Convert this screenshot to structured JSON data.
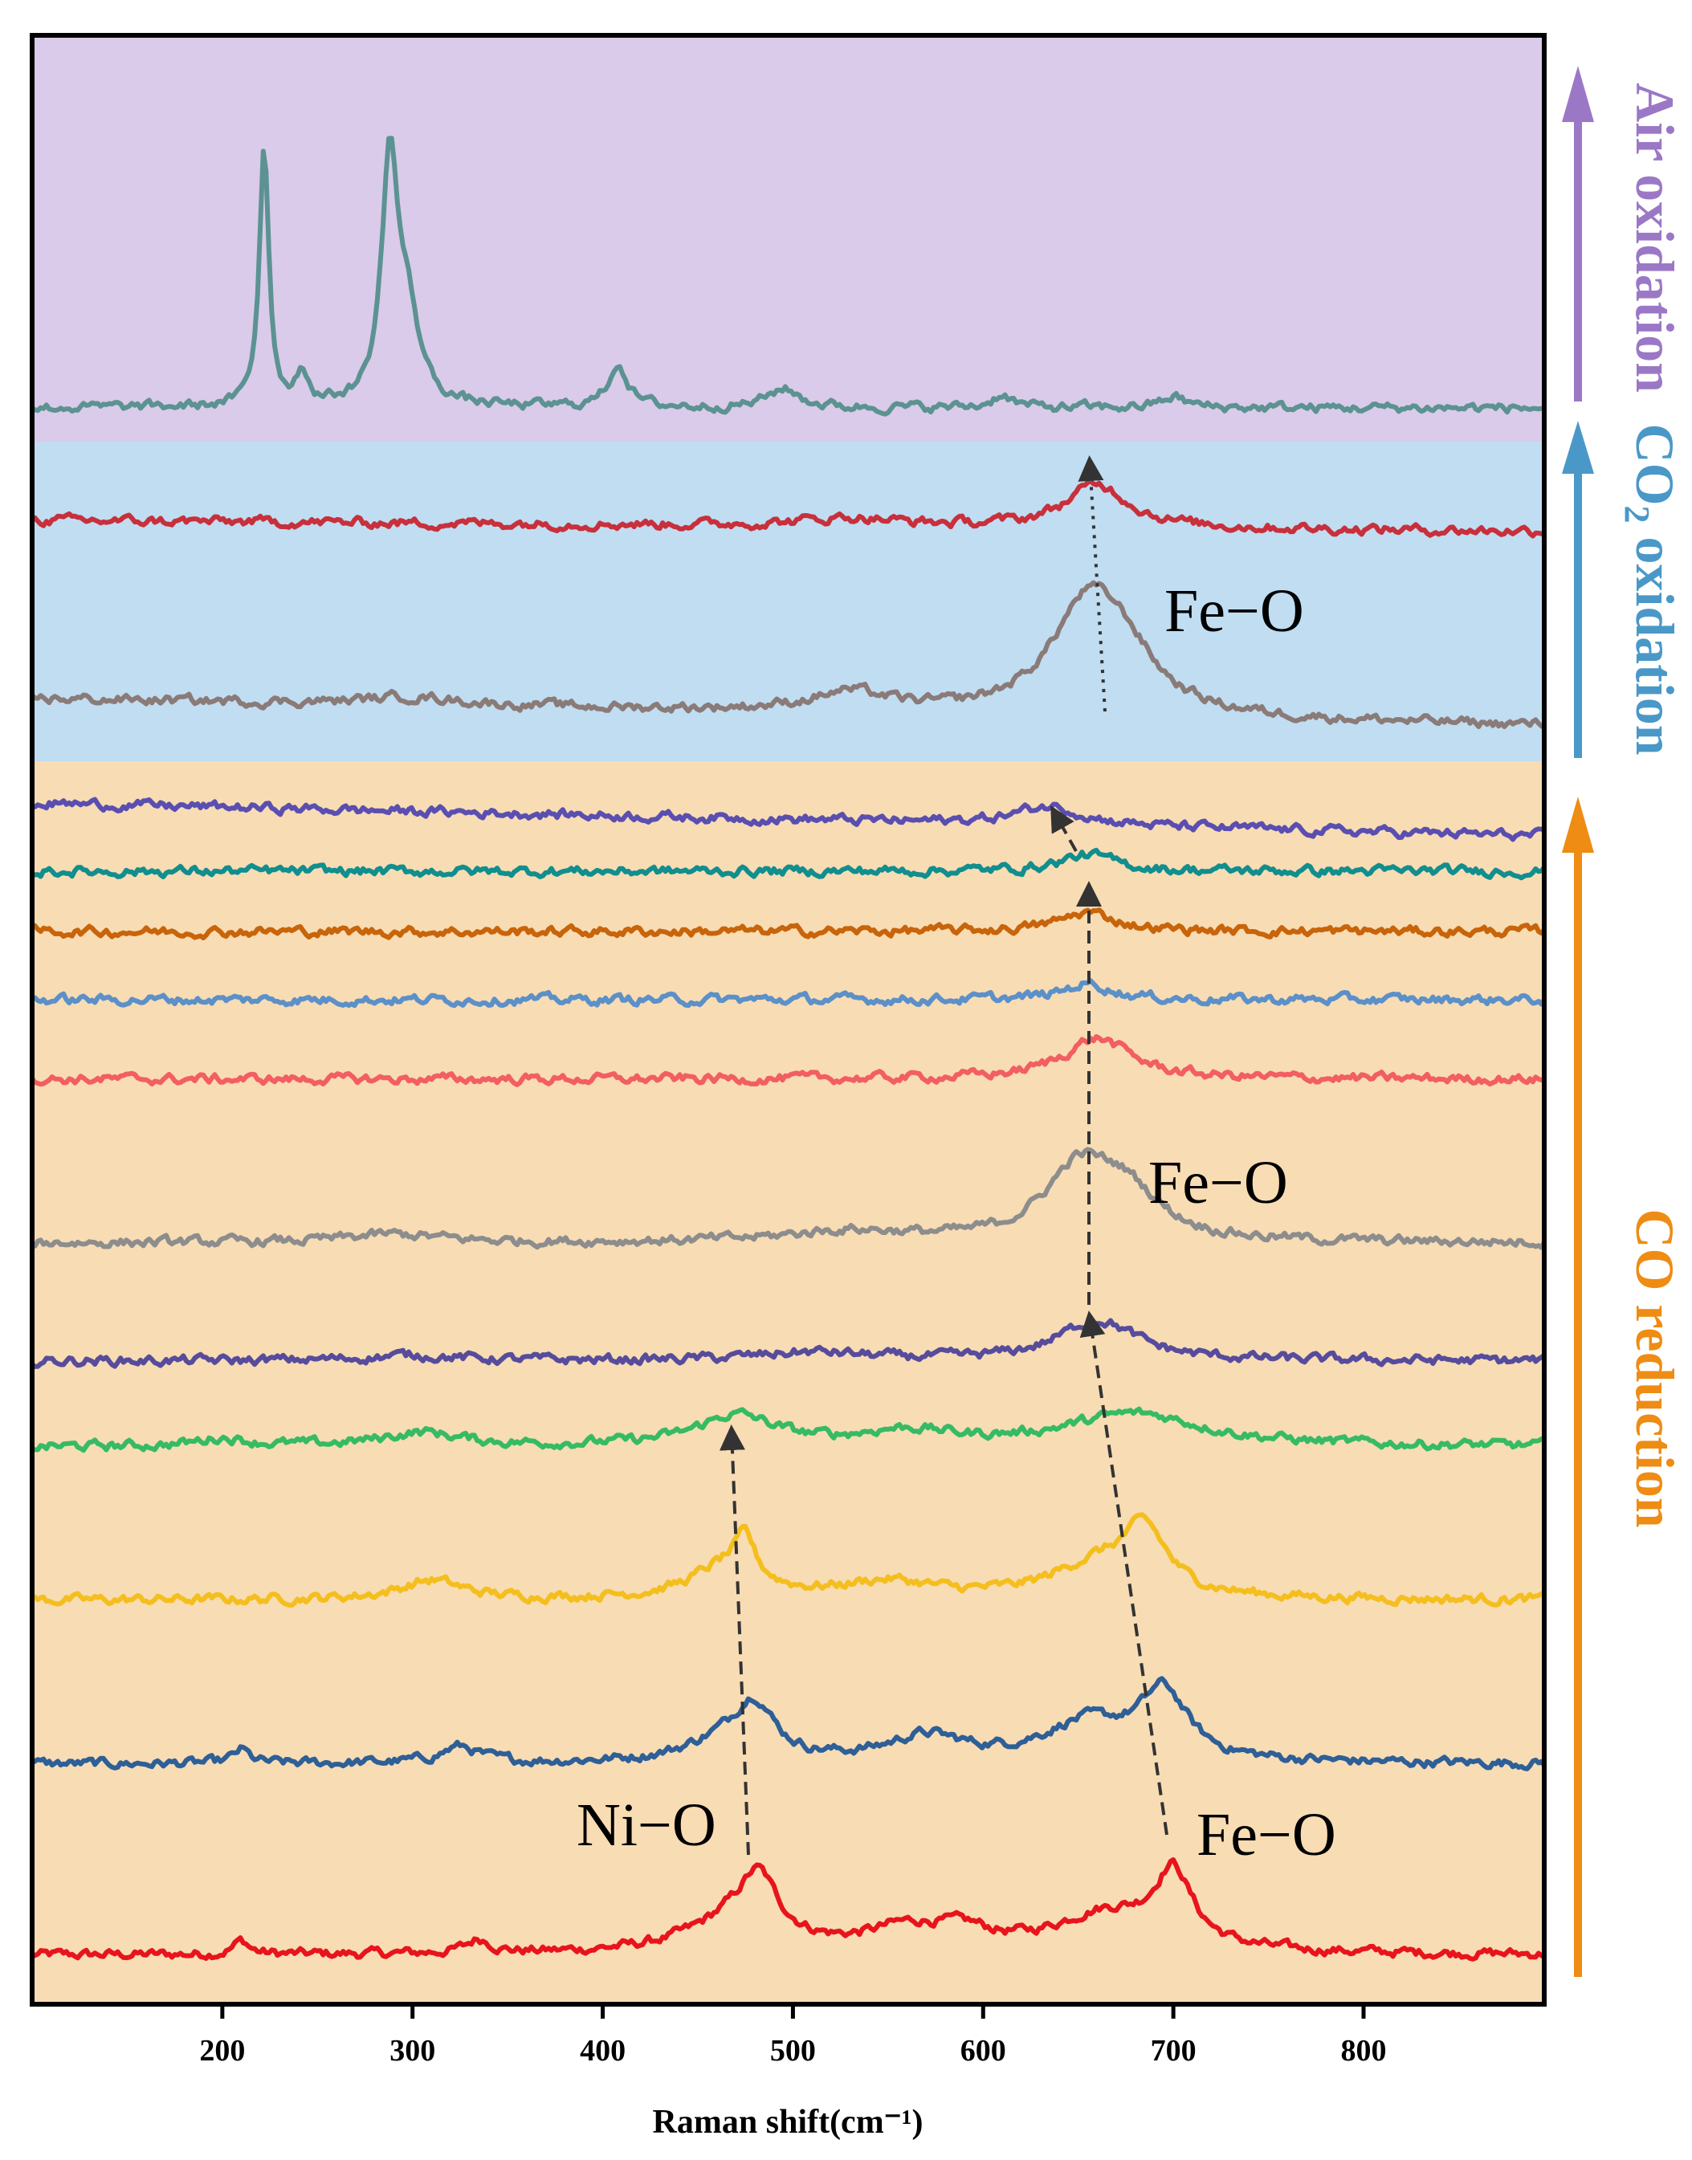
{
  "chart_data": {
    "type": "line",
    "title": "",
    "xlabel": "Raman shift(cm⁻¹)",
    "ylabel": "",
    "xlim": [
      100,
      895
    ],
    "xticks": [
      200,
      300,
      400,
      500,
      600,
      700,
      800
    ],
    "tick_labels": [
      "200",
      "300",
      "400",
      "500",
      "600",
      "700",
      "800"
    ],
    "y_axis": "stacked intensity (a.u.), no ticks",
    "regions": [
      {
        "name": "CO reduction",
        "color": "#f8dcb4",
        "label_color": "#ee8c14"
      },
      {
        "name": "CO2 oxidation",
        "color": "#c0ddf2",
        "label_color": "#4a98c8"
      },
      {
        "name": "Air oxidation",
        "color": "#d9cbe9",
        "label_color": "#9b78c6"
      }
    ],
    "side_labels": {
      "co_reduction": "CO reduction",
      "co2_oxidation_prefix": "CO",
      "co2_oxidation_sub": "2",
      "co2_oxidation_suffix": " oxidation",
      "air_oxidation": "Air oxidation"
    },
    "annotations": {
      "ni_o": "Ni−O",
      "fe_o_bottom": "Fe−O",
      "fe_o_middle": "Fe−O",
      "fe_o_co2": "Fe−O"
    },
    "series": [
      {
        "name": "CO reduction 1",
        "region": "CO reduction",
        "color": "#e8141c",
        "baseline": 0.56,
        "slope": 0,
        "peaks": [
          [
            210,
            0.25,
            5
          ],
          [
            335,
            0.25,
            8
          ],
          [
            470,
            0.6,
            30
          ],
          [
            482,
            1.0,
            12
          ],
          [
            560,
            0.4,
            25
          ],
          [
            590,
            0.3,
            18
          ],
          [
            665,
            0.7,
            35
          ],
          [
            700,
            1.3,
            12
          ]
        ]
      },
      {
        "name": "CO reduction 2",
        "region": "CO reduction",
        "color": "#2e5f97",
        "baseline": 0.56,
        "slope": 0,
        "peaks": [
          [
            210,
            0.25,
            5
          ],
          [
            325,
            0.3,
            12
          ],
          [
            465,
            0.4,
            25
          ],
          [
            480,
            0.9,
            12
          ],
          [
            570,
            0.45,
            25
          ],
          [
            655,
            0.7,
            30
          ],
          [
            695,
            1.2,
            15
          ]
        ]
      },
      {
        "name": "CO reduction 3",
        "region": "CO reduction",
        "color": "#f4bf1e",
        "baseline": 0.56,
        "slope": 0,
        "peaks": [
          [
            310,
            0.35,
            20
          ],
          [
            465,
            0.6,
            22
          ],
          [
            475,
            0.7,
            6
          ],
          [
            550,
            0.3,
            30
          ],
          [
            660,
            0.6,
            30
          ],
          [
            685,
            1.1,
            14
          ]
        ]
      },
      {
        "name": "CO reduction 4",
        "region": "CO reduction",
        "color": "#36bb64",
        "baseline": 0.56,
        "slope": 0,
        "peaks": [
          [
            200,
            0.15,
            15
          ],
          [
            305,
            0.25,
            25
          ],
          [
            470,
            0.55,
            25
          ],
          [
            560,
            0.25,
            30
          ],
          [
            680,
            0.6,
            45
          ]
        ]
      },
      {
        "name": "CO reduction 5",
        "region": "CO reduction",
        "color": "#574c9c",
        "baseline": 0.56,
        "slope": 0,
        "peaks": [
          [
            300,
            0.1,
            30
          ],
          [
            510,
            0.15,
            35
          ],
          [
            660,
            0.75,
            25
          ]
        ]
      },
      {
        "name": "CO reduction 6",
        "region": "CO reduction",
        "color": "#8d8d8d",
        "baseline": 0.56,
        "slope": 0,
        "peaks": [
          [
            290,
            0.15,
            30
          ],
          [
            530,
            0.2,
            40
          ],
          [
            650,
            1.25,
            22
          ],
          [
            675,
            0.8,
            22
          ]
        ]
      },
      {
        "name": "CO reduction 7",
        "region": "CO reduction",
        "color": "#f25e62",
        "baseline": 0.56,
        "slope": 0,
        "peaks": [
          [
            660,
            0.75,
            22
          ]
        ]
      },
      {
        "name": "CO reduction 8",
        "region": "CO reduction",
        "color": "#5c90c8",
        "baseline": 0.56,
        "slope": 0,
        "peaks": [
          [
            655,
            0.3,
            15
          ]
        ]
      },
      {
        "name": "CO reduction 9",
        "region": "CO reduction",
        "color": "#c8640a",
        "baseline": 0.56,
        "slope": 0,
        "peaks": [
          [
            655,
            0.35,
            18
          ]
        ]
      },
      {
        "name": "CO reduction 10",
        "region": "CO reduction",
        "color": "#118e8e",
        "baseline": 0.56,
        "slope": 0,
        "peaks": [
          [
            655,
            0.3,
            18
          ]
        ]
      },
      {
        "name": "CO reduction 11",
        "region": "CO reduction",
        "color": "#5a4fb0",
        "baseline": 0.56,
        "slope": -0.6,
        "peaks": [
          [
            635,
            0.35,
            22
          ]
        ]
      },
      {
        "name": "CO2 oxidation 1",
        "region": "CO2 oxidation",
        "color": "#8a7b78",
        "baseline": 0.56,
        "slope": -0.5,
        "peaks": [
          [
            300,
            0.15,
            30
          ],
          [
            530,
            0.35,
            25
          ],
          [
            655,
            2.0,
            24
          ],
          [
            675,
            0.7,
            20
          ]
        ]
      },
      {
        "name": "CO2 oxidation 2",
        "region": "CO2 oxidation",
        "color": "#c8303c",
        "baseline": 0.56,
        "slope": -0.2,
        "peaks": [
          [
            530,
            0.15,
            30
          ],
          [
            660,
            0.8,
            20
          ]
        ]
      },
      {
        "name": "Air oxidation",
        "region": "Air oxidation",
        "color": "#5c9292",
        "baseline": 0.56,
        "slope": 0,
        "peaks": [
          [
            222,
            4.8,
            3
          ],
          [
            242,
            0.6,
            4
          ],
          [
            288,
            4.3,
            5
          ],
          [
            297,
            1.6,
            8
          ],
          [
            408,
            0.8,
            6
          ],
          [
            495,
            0.35,
            10
          ],
          [
            610,
            0.25,
            6
          ],
          [
            700,
            0.2,
            8
          ]
        ]
      }
    ]
  }
}
